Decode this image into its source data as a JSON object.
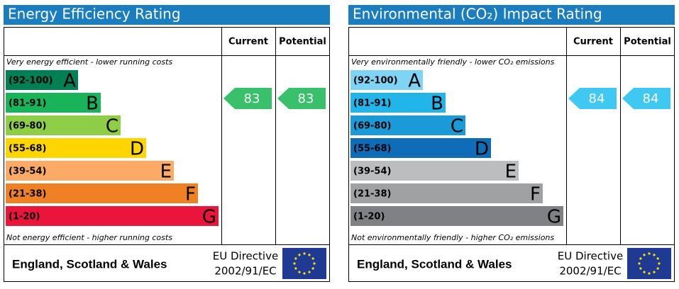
{
  "chart_data": [
    {
      "type": "epc",
      "title": "Energy Efficiency Rating",
      "columns": [
        "Current",
        "Potential"
      ],
      "top_note": "Very energy efficient - lower running costs",
      "bottom_note": "Not energy efficient - higher running costs",
      "bands": [
        {
          "range": "(92-100)",
          "letter": "A",
          "color": "#008054"
        },
        {
          "range": "(81-91)",
          "letter": "B",
          "color": "#19b459"
        },
        {
          "range": "(69-80)",
          "letter": "C",
          "color": "#8dce46"
        },
        {
          "range": "(55-68)",
          "letter": "D",
          "color": "#ffd500"
        },
        {
          "range": "(39-54)",
          "letter": "E",
          "color": "#fcaa65"
        },
        {
          "range": "(21-38)",
          "letter": "F",
          "color": "#ef8023"
        },
        {
          "range": "(1-20)",
          "letter": "G",
          "color": "#e9153b"
        }
      ],
      "current": 83,
      "potential": 83,
      "current_color": "#38c06a",
      "potential_color": "#38c06a",
      "footer": {
        "region": "England, Scotland & Wales",
        "directive": "EU Directive",
        "directive_code": "2002/91/EC"
      }
    },
    {
      "type": "epc",
      "title": "Environmental (CO₂) Impact Rating",
      "columns": [
        "Current",
        "Potential"
      ],
      "top_note": "Very environmentally friendly - lower CO₂ emissions",
      "bottom_note": "Not environmentally friendly - higher CO₂ emissions",
      "bands": [
        {
          "range": "(92-100)",
          "letter": "A",
          "color": "#7fd3f5"
        },
        {
          "range": "(81-91)",
          "letter": "B",
          "color": "#22b5e9"
        },
        {
          "range": "(69-80)",
          "letter": "C",
          "color": "#1a9ad7"
        },
        {
          "range": "(55-68)",
          "letter": "D",
          "color": "#0f6cb6"
        },
        {
          "range": "(39-54)",
          "letter": "E",
          "color": "#bbbdbf"
        },
        {
          "range": "(21-38)",
          "letter": "F",
          "color": "#a0a1a3"
        },
        {
          "range": "(1-20)",
          "letter": "G",
          "color": "#808184"
        }
      ],
      "current": 84,
      "potential": 84,
      "current_color": "#3ec8f2",
      "potential_color": "#3ec8f2",
      "footer": {
        "region": "England, Scotland & Wales",
        "directive": "EU Directive",
        "directive_code": "2002/91/EC"
      }
    }
  ]
}
